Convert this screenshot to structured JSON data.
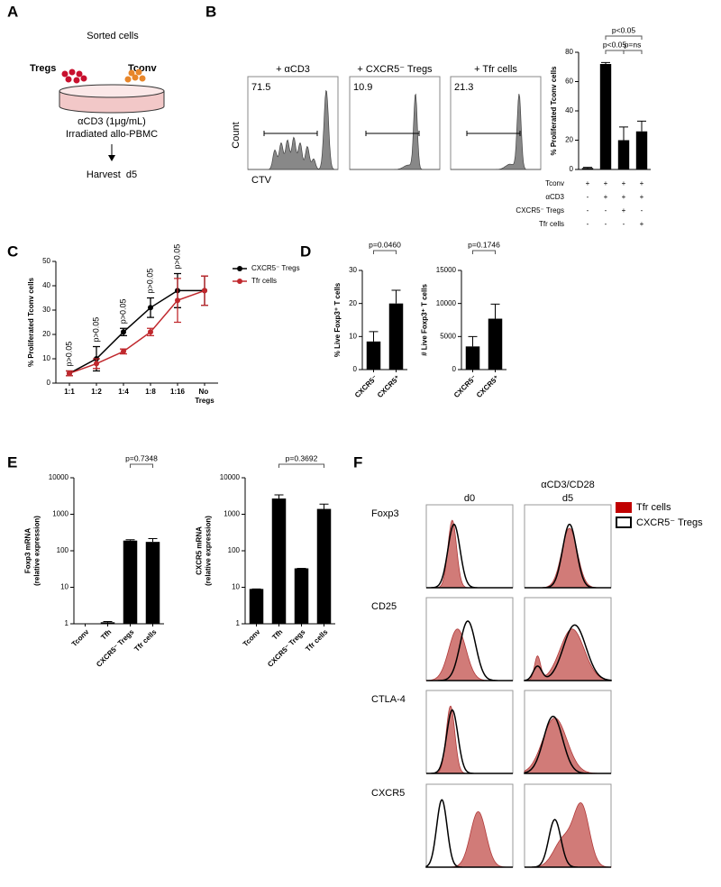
{
  "panel_labels": [
    "A",
    "B",
    "C",
    "D",
    "E",
    "F"
  ],
  "panel_a": {
    "title": "Sorted cells",
    "left_label": "Tregs",
    "right_label": "Tconv",
    "conditions": [
      "αCD3 (1μg/mL)",
      "Irradiated allo-PBMC"
    ],
    "harvest": "Harvest  d5"
  },
  "panel_b_flow": {
    "titles": [
      "+ αCD3",
      "+ CXCR5⁻ Tregs",
      "+ Tfr cells"
    ],
    "gate_values": [
      71.5,
      10.9,
      21.3
    ],
    "ylabel": "Count",
    "xlabel": "CTV"
  },
  "chart_data": [
    {
      "type": "bar",
      "ylabel": "% Proliferated Tconv cells",
      "categories": [
        null,
        null,
        null,
        null
      ],
      "values": [
        1,
        72,
        20,
        26
      ],
      "errors": [
        0.5,
        1,
        9,
        7
      ],
      "color": "#000000",
      "ylim": [
        0,
        80
      ],
      "yticks": [
        0,
        20,
        40,
        60,
        80
      ],
      "annotations": [
        "p<0.05",
        "p<0.05",
        "p=ns"
      ],
      "condition_table": [
        {
          "name": "Tconv",
          "signs": [
            "+",
            "+",
            "+",
            "+"
          ]
        },
        {
          "name": "αCD3",
          "signs": [
            "-",
            "+",
            "+",
            "+"
          ]
        },
        {
          "name": "CXCR5⁻ Tregs",
          "signs": [
            "-",
            "-",
            "+",
            "-"
          ]
        },
        {
          "name": "Tfr cells",
          "signs": [
            "-",
            "-",
            "-",
            "+"
          ]
        }
      ]
    },
    {
      "type": "line",
      "ylabel": "% Proliferated Tconv cells",
      "categories": [
        "1:1",
        "1:2",
        "1:4",
        "1:8",
        "1:16",
        "No Tregs"
      ],
      "series": [
        {
          "name": "CXCR5⁻ Tregs",
          "color": "#000000",
          "values": [
            4,
            10,
            21,
            31,
            38,
            38
          ],
          "errors": [
            1,
            5,
            1.5,
            4,
            7,
            6
          ]
        },
        {
          "name": "Tfr cells",
          "color": "#c0282d",
          "values": [
            4,
            8,
            13,
            21,
            34,
            38
          ],
          "errors": [
            1,
            2,
            1,
            1.5,
            9,
            6
          ]
        }
      ],
      "ylim": [
        0,
        50
      ],
      "yticks": [
        0,
        10,
        20,
        30,
        40,
        50
      ],
      "annotations": [
        "p>0.05",
        "p>0.05",
        "p>0.05",
        "p>0.05",
        "p>0.05"
      ],
      "legend": "upper right"
    },
    {
      "type": "bar",
      "ylabel": "% Live Foxp3⁺ T cells",
      "categories": [
        "CXCR5⁻",
        "CXCR5⁺"
      ],
      "values": [
        8.5,
        20
      ],
      "errors": [
        3,
        4
      ],
      "color": "#000000",
      "ylim": [
        0,
        30
      ],
      "yticks": [
        0,
        10,
        20,
        30
      ],
      "annotations": [
        "p=0.0460"
      ]
    },
    {
      "type": "bar",
      "ylabel": "# Live Foxp3⁺ T cells",
      "categories": [
        "CXCR5⁻",
        "CXCR5⁺"
      ],
      "values": [
        3500,
        7700
      ],
      "errors": [
        1500,
        2200
      ],
      "color": "#000000",
      "ylim": [
        0,
        15000
      ],
      "yticks": [
        0,
        5000,
        10000,
        15000
      ],
      "annotations": [
        "p=0.1746"
      ]
    },
    {
      "type": "bar",
      "ylabel": [
        "Foxp3 mRNA",
        "(relative expression)"
      ],
      "categories": [
        "Tconv",
        "Tfh",
        "CXCR5⁻ Tregs",
        "Tfr cells"
      ],
      "values": [
        1,
        1.1,
        190,
        175
      ],
      "errors": [
        0,
        0.05,
        10,
        40
      ],
      "color": "#000000",
      "log_scale": true,
      "ylim": [
        1,
        10000
      ],
      "yticks": [
        1,
        10,
        100,
        1000,
        10000
      ],
      "annotations": [
        "p=0.7348"
      ]
    },
    {
      "type": "bar",
      "ylabel": [
        "CXCR5 mRNA",
        "(relative expression)"
      ],
      "categories": [
        "Tconv",
        "Tfh",
        "CXCR5⁻ Tregs",
        "Tfr cells"
      ],
      "values": [
        9,
        2700,
        33,
        1400
      ],
      "errors": [
        0,
        700,
        0,
        500
      ],
      "color": "#000000",
      "log_scale": true,
      "ylim": [
        1,
        10000
      ],
      "yticks": [
        1,
        10,
        100,
        1000,
        10000
      ],
      "annotations": [
        "p=0.3692"
      ]
    }
  ],
  "panel_f": {
    "columns": [
      {
        "label": "d0"
      },
      {
        "label": "d5",
        "header": "αCD3/CD28"
      }
    ],
    "rows": [
      "Foxp3",
      "CD25",
      "CTLA-4",
      "CXCR5"
    ],
    "legend": [
      "Tfr cells",
      "CXCR5⁻ Tregs"
    ]
  }
}
